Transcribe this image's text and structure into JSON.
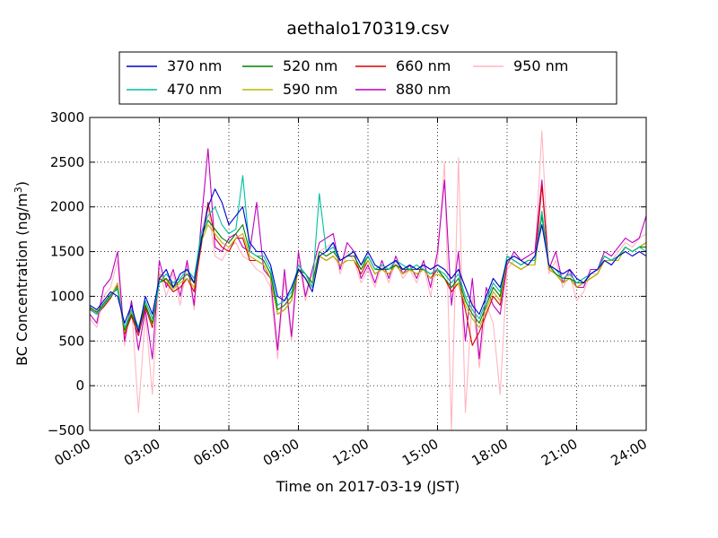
{
  "chart_data": {
    "type": "line",
    "title": "aethalo170319.csv",
    "xlabel": "Time on 2017-03-19 (JST)",
    "ylabel_main": "BC Concentration (ng/m",
    "ylabel_sup": "3",
    "ylabel_end": ")",
    "xlim": [
      0,
      24
    ],
    "ylim": [
      -500,
      3000
    ],
    "yticks": [
      -500,
      0,
      500,
      1000,
      1500,
      2000,
      2500,
      3000
    ],
    "ytick_labels": [
      "−500",
      "0",
      "500",
      "1000",
      "1500",
      "2000",
      "2500",
      "3000"
    ],
    "xticks": [
      0,
      3,
      6,
      9,
      12,
      15,
      18,
      21,
      24
    ],
    "xtick_labels": [
      "00:00",
      "03:00",
      "06:00",
      "09:00",
      "12:00",
      "15:00",
      "18:00",
      "21:00",
      "24:00"
    ],
    "grid": true,
    "legend_placement": "top-center",
    "x_hours": [
      0.0,
      0.3,
      0.6,
      0.9,
      1.2,
      1.5,
      1.8,
      2.1,
      2.4,
      2.7,
      3.0,
      3.3,
      3.6,
      3.9,
      4.2,
      4.5,
      4.8,
      5.1,
      5.4,
      5.7,
      6.0,
      6.3,
      6.6,
      6.9,
      7.2,
      7.5,
      7.8,
      8.1,
      8.4,
      8.7,
      9.0,
      9.3,
      9.6,
      9.9,
      10.2,
      10.5,
      10.8,
      11.1,
      11.4,
      11.7,
      12.0,
      12.3,
      12.6,
      12.9,
      13.2,
      13.5,
      13.8,
      14.1,
      14.4,
      14.7,
      15.0,
      15.3,
      15.6,
      15.9,
      16.2,
      16.5,
      16.8,
      17.1,
      17.4,
      17.7,
      18.0,
      18.3,
      18.6,
      18.9,
      19.2,
      19.5,
      19.8,
      20.1,
      20.4,
      20.7,
      21.0,
      21.3,
      21.6,
      21.9,
      22.2,
      22.5,
      22.8,
      23.1,
      23.4,
      23.7,
      24.0
    ],
    "series": [
      {
        "name": "370 nm",
        "color": "#0000cc",
        "values": [
          900,
          850,
          950,
          1050,
          1000,
          700,
          900,
          600,
          1000,
          800,
          1200,
          1300,
          1100,
          1250,
          1300,
          1150,
          1600,
          2000,
          2200,
          2050,
          1800,
          1900,
          2000,
          1600,
          1500,
          1500,
          1350,
          1000,
          950,
          1100,
          1300,
          1200,
          1050,
          1450,
          1500,
          1600,
          1400,
          1450,
          1500,
          1350,
          1500,
          1350,
          1300,
          1350,
          1400,
          1300,
          1350,
          1300,
          1350,
          1300,
          1350,
          1300,
          1200,
          1300,
          1100,
          900,
          800,
          1000,
          1200,
          1100,
          1400,
          1450,
          1400,
          1350,
          1450,
          1800,
          1350,
          1300,
          1250,
          1300,
          1200,
          1150,
          1250,
          1300,
          1400,
          1350,
          1450,
          1500,
          1450,
          1500,
          1450
        ]
      },
      {
        "name": "470 nm",
        "color": "#00bfa0",
        "values": [
          850,
          800,
          900,
          1000,
          1100,
          650,
          850,
          650,
          950,
          750,
          1150,
          1250,
          1150,
          1200,
          1300,
          1200,
          1700,
          1900,
          2000,
          1800,
          1700,
          1750,
          2350,
          1500,
          1450,
          1450,
          1300,
          900,
          950,
          1050,
          1350,
          1250,
          1100,
          2150,
          1500,
          1550,
          1400,
          1450,
          1500,
          1350,
          1450,
          1300,
          1350,
          1300,
          1400,
          1350,
          1300,
          1350,
          1300,
          1250,
          1300,
          1250,
          1150,
          1250,
          1000,
          850,
          750,
          950,
          1150,
          1050,
          1450,
          1400,
          1350,
          1400,
          1400,
          1950,
          1350,
          1300,
          1200,
          1250,
          1150,
          1200,
          1250,
          1300,
          1450,
          1400,
          1450,
          1550,
          1500,
          1550,
          1500
        ]
      },
      {
        "name": "520 nm",
        "color": "#008000",
        "values": [
          880,
          820,
          920,
          1020,
          1080,
          620,
          800,
          620,
          900,
          700,
          1150,
          1200,
          1100,
          1180,
          1250,
          1150,
          1650,
          1850,
          1750,
          1650,
          1600,
          1700,
          1800,
          1500,
          1450,
          1400,
          1250,
          850,
          900,
          1000,
          1300,
          1250,
          1150,
          1500,
          1450,
          1500,
          1400,
          1450,
          1450,
          1300,
          1450,
          1300,
          1300,
          1300,
          1350,
          1300,
          1300,
          1300,
          1300,
          1250,
          1300,
          1200,
          1100,
          1200,
          950,
          800,
          700,
          900,
          1100,
          1000,
          1450,
          1400,
          1350,
          1400,
          1400,
          1900,
          1350,
          1250,
          1200,
          1200,
          1150,
          1150,
          1250,
          1300,
          1450,
          1400,
          1450,
          1550,
          1500,
          1550,
          1550
        ]
      },
      {
        "name": "590 nm",
        "color": "#b8b800",
        "values": [
          870,
          830,
          900,
          1000,
          1150,
          600,
          820,
          600,
          920,
          680,
          1250,
          1180,
          1080,
          1150,
          1200,
          1100,
          1600,
          1800,
          1700,
          1600,
          1550,
          1650,
          1700,
          1450,
          1400,
          1350,
          1200,
          800,
          850,
          950,
          1300,
          1200,
          1100,
          1450,
          1400,
          1450,
          1350,
          1400,
          1400,
          1300,
          1400,
          1250,
          1300,
          1250,
          1350,
          1250,
          1300,
          1250,
          1300,
          1200,
          1250,
          1200,
          1100,
          1150,
          900,
          750,
          650,
          850,
          1050,
          950,
          1400,
          1350,
          1300,
          1350,
          1350,
          1950,
          1300,
          1250,
          1150,
          1200,
          1100,
          1150,
          1200,
          1250,
          1400,
          1400,
          1400,
          1550,
          1500,
          1550,
          1600
        ]
      },
      {
        "name": "660 nm",
        "color": "#dd0000",
        "values": [
          860,
          800,
          880,
          980,
          1120,
          580,
          780,
          560,
          880,
          650,
          1200,
          1150,
          1050,
          1100,
          1200,
          1050,
          1550,
          2050,
          1650,
          1550,
          1500,
          1650,
          1650,
          1400,
          1400,
          1350,
          1200,
          800,
          850,
          950,
          1300,
          1200,
          1100,
          1450,
          1400,
          1450,
          1350,
          1400,
          1400,
          1250,
          1400,
          1250,
          1300,
          1250,
          1350,
          1250,
          1300,
          1250,
          1300,
          1200,
          1300,
          1200,
          1050,
          1150,
          850,
          450,
          600,
          800,
          1000,
          900,
          1400,
          1350,
          1300,
          1350,
          1350,
          2250,
          1300,
          1250,
          1150,
          1200,
          1100,
          1150,
          1200,
          1250,
          1400,
          1400,
          1450,
          1550,
          1500,
          1550,
          1600
        ]
      },
      {
        "name": "880 nm",
        "color": "#c000c0",
        "values": [
          800,
          700,
          1100,
          1200,
          1500,
          500,
          950,
          400,
          850,
          300,
          1400,
          1100,
          1300,
          1000,
          1400,
          900,
          1800,
          2650,
          1550,
          1500,
          1650,
          1700,
          1550,
          1500,
          2050,
          1300,
          1200,
          400,
          1300,
          550,
          1500,
          1000,
          1300,
          1600,
          1650,
          1700,
          1300,
          1600,
          1500,
          1200,
          1350,
          1150,
          1400,
          1200,
          1450,
          1250,
          1350,
          1200,
          1400,
          1100,
          1500,
          2300,
          900,
          1500,
          500,
          1200,
          300,
          1100,
          900,
          800,
          1350,
          1500,
          1400,
          1450,
          1500,
          2300,
          1300,
          1500,
          1150,
          1300,
          1100,
          1100,
          1300,
          1300,
          1500,
          1450,
          1550,
          1650,
          1600,
          1650,
          1900
        ]
      },
      {
        "name": "950 nm",
        "color": "#ffb6c1",
        "values": [
          750,
          650,
          1000,
          1100,
          1400,
          450,
          900,
          -300,
          800,
          -100,
          1300,
          1000,
          1250,
          900,
          1350,
          850,
          1700,
          2000,
          1450,
          1400,
          1550,
          1600,
          1450,
          1400,
          1300,
          1250,
          1100,
          300,
          1200,
          500,
          1400,
          950,
          1250,
          1500,
          1550,
          1600,
          1250,
          1500,
          1400,
          1150,
          1300,
          1100,
          1350,
          1150,
          1400,
          1200,
          1300,
          1150,
          1350,
          1000,
          1400,
          2500,
          -500,
          2550,
          -300,
          1000,
          200,
          900,
          700,
          -100,
          1300,
          1400,
          1350,
          1400,
          1450,
          2850,
          1250,
          1400,
          1100,
          1250,
          950,
          1050,
          1250,
          1250,
          1450,
          1400,
          1500,
          1600,
          1550,
          1650,
          1700
        ]
      }
    ]
  }
}
